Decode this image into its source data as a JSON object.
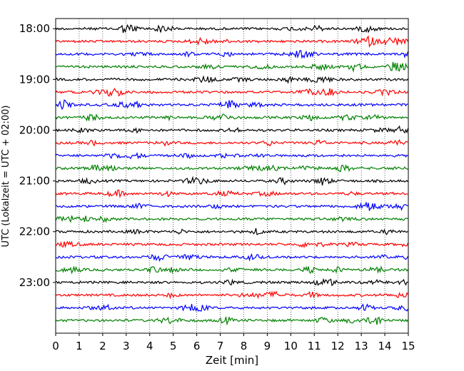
{
  "chart_data": {
    "type": "line",
    "title": "",
    "xlabel": "Zeit  [min]",
    "ylabel": "UTC (Lokalzeit = UTC + 02:00)",
    "xlim": [
      0,
      15
    ],
    "x_ticks": [
      "0",
      "1",
      "2",
      "3",
      "4",
      "5",
      "6",
      "7",
      "8",
      "9",
      "10",
      "11",
      "12",
      "13",
      "14",
      "15"
    ],
    "y_ticks": [
      "18:00",
      "19:00",
      "20:00",
      "21:00",
      "22:00",
      "23:00"
    ],
    "y_range": [
      "17:48",
      "24:00"
    ],
    "trace_interval_min": 15,
    "grid": "vertical dotted at each minute",
    "trace_colors": [
      "#000000",
      "#ff0000",
      "#0000ff",
      "#008000"
    ],
    "traces": [
      {
        "start": "18:00",
        "color": "#000000"
      },
      {
        "start": "18:15",
        "color": "#ff0000"
      },
      {
        "start": "18:30",
        "color": "#0000ff"
      },
      {
        "start": "18:45",
        "color": "#008000"
      },
      {
        "start": "19:00",
        "color": "#000000"
      },
      {
        "start": "19:15",
        "color": "#ff0000"
      },
      {
        "start": "19:30",
        "color": "#0000ff"
      },
      {
        "start": "19:45",
        "color": "#008000"
      },
      {
        "start": "20:00",
        "color": "#000000"
      },
      {
        "start": "20:15",
        "color": "#ff0000"
      },
      {
        "start": "20:30",
        "color": "#0000ff"
      },
      {
        "start": "20:45",
        "color": "#008000"
      },
      {
        "start": "21:00",
        "color": "#000000"
      },
      {
        "start": "21:15",
        "color": "#ff0000"
      },
      {
        "start": "21:30",
        "color": "#0000ff"
      },
      {
        "start": "21:45",
        "color": "#008000"
      },
      {
        "start": "22:00",
        "color": "#000000"
      },
      {
        "start": "22:15",
        "color": "#ff0000"
      },
      {
        "start": "22:30",
        "color": "#0000ff"
      },
      {
        "start": "22:45",
        "color": "#008000"
      },
      {
        "start": "23:00",
        "color": "#000000"
      },
      {
        "start": "23:15",
        "color": "#ff0000"
      },
      {
        "start": "23:30",
        "color": "#0000ff"
      },
      {
        "start": "23:45",
        "color": "#008000"
      }
    ]
  }
}
